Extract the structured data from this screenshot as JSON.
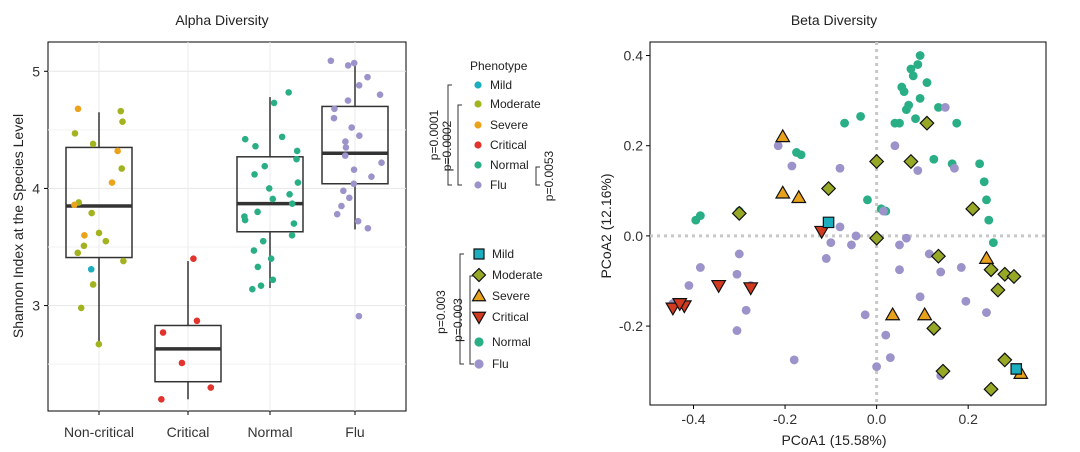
{
  "chart_data": [
    {
      "type": "box",
      "title": "Alpha Diversity",
      "xlabel": "",
      "ylabel": "Shannon Index at the Species Level",
      "categories": [
        "Non-critical",
        "Critical",
        "Normal",
        "Flu"
      ],
      "ylim": [
        2.1,
        5.25
      ],
      "yticks": [
        3,
        4,
        5
      ],
      "grid": true,
      "boxes": [
        {
          "category": "Non-critical",
          "q1": 3.41,
          "median": 3.85,
          "q3": 4.35,
          "whisker_low": 2.67,
          "whisker_high": 4.65
        },
        {
          "category": "Critical",
          "q1": 2.35,
          "median": 2.63,
          "q3": 2.83,
          "whisker_low": 2.2,
          "whisker_high": 3.38
        },
        {
          "category": "Normal",
          "q1": 3.63,
          "median": 3.87,
          "q3": 4.27,
          "whisker_low": 3.15,
          "whisker_high": 4.78
        },
        {
          "category": "Flu",
          "q1": 4.04,
          "median": 4.3,
          "q3": 4.7,
          "whisker_low": 3.65,
          "whisker_high": 5.07
        }
      ],
      "points": [
        {
          "category": "Non-critical",
          "group": "Moderate",
          "values": [
            4.66,
            4.57,
            4.47,
            4.38,
            4.17,
            3.88,
            3.79,
            3.62,
            3.55,
            3.51,
            3.45,
            3.38,
            3.18,
            2.98,
            2.67
          ]
        },
        {
          "category": "Non-critical",
          "group": "Severe",
          "values": [
            4.68,
            4.32,
            4.05,
            3.86,
            3.6
          ]
        },
        {
          "category": "Non-critical",
          "group": "Mild",
          "values": [
            3.31
          ]
        },
        {
          "category": "Critical",
          "group": "Critical",
          "values": [
            3.4,
            2.87,
            2.77,
            2.51,
            2.3,
            2.2
          ]
        },
        {
          "category": "Normal",
          "group": "Normal",
          "values": [
            4.82,
            4.73,
            4.44,
            4.42,
            4.36,
            4.32,
            4.25,
            4.19,
            4.12,
            4.05,
            4.0,
            3.95,
            3.91,
            3.87,
            3.8,
            3.76,
            3.73,
            3.7,
            3.6,
            3.55,
            3.47,
            3.4,
            3.33,
            3.22,
            3.17,
            3.14
          ]
        },
        {
          "category": "Flu",
          "group": "Flu",
          "values": [
            5.09,
            5.07,
            5.05,
            4.95,
            4.88,
            4.8,
            4.75,
            4.68,
            4.6,
            4.52,
            4.45,
            4.4,
            4.35,
            4.28,
            4.22,
            4.16,
            4.1,
            4.04,
            3.98,
            3.92,
            3.85,
            3.78,
            3.72,
            3.66,
            2.91
          ]
        }
      ],
      "legend": {
        "title": "Phenotype",
        "placement": "right",
        "entries": [
          {
            "label": "Mild",
            "color": "#1aaebf"
          },
          {
            "label": "Moderate",
            "color": "#a3b31f"
          },
          {
            "label": "Severe",
            "color": "#eba31b"
          },
          {
            "label": "Critical",
            "color": "#e2332c"
          },
          {
            "label": "Normal",
            "color": "#2aae86"
          },
          {
            "label": "Flu",
            "color": "#9b93c9"
          }
        ]
      },
      "annotations": [
        "p=0.0001",
        "p=0.0002",
        "p=0.0053"
      ]
    },
    {
      "type": "scatter",
      "title": "Beta Diversity",
      "xlabel": "PCoA1 (15.58%)",
      "ylabel": "PCoA2 (12.16%)",
      "xlim": [
        -0.495,
        0.37
      ],
      "ylim": [
        -0.375,
        0.43
      ],
      "xticks": [
        -0.4,
        -0.2,
        0.0,
        0.2
      ],
      "yticks": [
        -0.2,
        0.0,
        0.2,
        0.4
      ],
      "reference_lines": {
        "x": 0,
        "y": 0
      },
      "series": [
        {
          "name": "Mild",
          "marker": "square",
          "color": "#1aaebf",
          "points": [
            [
              -0.105,
              0.03
            ],
            [
              0.305,
              -0.295
            ]
          ]
        },
        {
          "name": "Moderate",
          "marker": "diamond",
          "color": "#97a827",
          "points": [
            [
              -0.3,
              0.05
            ],
            [
              -0.105,
              0.105
            ],
            [
              0.0,
              0.165
            ],
            [
              0.075,
              0.165
            ],
            [
              0.11,
              0.25
            ],
            [
              0.0,
              -0.005
            ],
            [
              0.135,
              -0.045
            ],
            [
              0.21,
              0.06
            ],
            [
              0.25,
              -0.075
            ],
            [
              0.265,
              -0.12
            ],
            [
              0.28,
              -0.085
            ],
            [
              0.3,
              -0.09
            ],
            [
              0.125,
              -0.205
            ],
            [
              0.145,
              -0.3
            ],
            [
              0.28,
              -0.275
            ],
            [
              0.25,
              -0.34
            ]
          ]
        },
        {
          "name": "Severe",
          "marker": "triangle-up",
          "color": "#e8a11a",
          "points": [
            [
              -0.205,
              0.22
            ],
            [
              -0.205,
              0.095
            ],
            [
              -0.17,
              0.085
            ],
            [
              0.035,
              -0.175
            ],
            [
              0.105,
              -0.175
            ],
            [
              0.24,
              -0.05
            ],
            [
              0.315,
              -0.305
            ]
          ]
        },
        {
          "name": "Critical",
          "marker": "triangle-down",
          "color": "#d23a1f",
          "points": [
            [
              -0.275,
              -0.115
            ],
            [
              -0.345,
              -0.11
            ],
            [
              -0.42,
              -0.155
            ],
            [
              -0.445,
              -0.16
            ],
            [
              -0.43,
              -0.15
            ],
            [
              -0.12,
              0.01
            ]
          ]
        },
        {
          "name": "Normal",
          "marker": "circle",
          "color": "#2aae86",
          "points": [
            [
              -0.385,
              0.045
            ],
            [
              -0.395,
              0.035
            ],
            [
              -0.3,
              0.055
            ],
            [
              -0.175,
              0.185
            ],
            [
              -0.165,
              0.18
            ],
            [
              -0.07,
              0.25
            ],
            [
              -0.035,
              0.265
            ],
            [
              0.01,
              0.06
            ],
            [
              0.02,
              0.055
            ],
            [
              0.04,
              0.25
            ],
            [
              0.05,
              0.25
            ],
            [
              0.055,
              0.33
            ],
            [
              0.06,
              0.32
            ],
            [
              0.065,
              0.28
            ],
            [
              0.07,
              0.29
            ],
            [
              0.075,
              0.37
            ],
            [
              0.08,
              0.355
            ],
            [
              0.085,
              0.26
            ],
            [
              0.09,
              0.38
            ],
            [
              0.095,
              0.4
            ],
            [
              0.095,
              0.305
            ],
            [
              0.11,
              0.34
            ],
            [
              0.125,
              0.17
            ],
            [
              0.135,
              0.285
            ],
            [
              0.165,
              0.16
            ],
            [
              0.175,
              0.25
            ],
            [
              0.225,
              0.16
            ],
            [
              0.235,
              0.12
            ],
            [
              0.24,
              0.08
            ],
            [
              0.245,
              0.035
            ],
            [
              0.255,
              -0.015
            ],
            [
              -0.02,
              0.08
            ]
          ]
        },
        {
          "name": "Flu",
          "marker": "circle",
          "color": "#9b93c9",
          "points": [
            [
              -0.445,
              -0.15
            ],
            [
              -0.41,
              -0.11
            ],
            [
              -0.385,
              -0.07
            ],
            [
              -0.305,
              -0.085
            ],
            [
              -0.305,
              -0.21
            ],
            [
              -0.3,
              -0.04
            ],
            [
              -0.285,
              -0.165
            ],
            [
              -0.275,
              -0.11
            ],
            [
              -0.215,
              0.2
            ],
            [
              -0.185,
              0.155
            ],
            [
              -0.18,
              -0.275
            ],
            [
              -0.11,
              -0.05
            ],
            [
              -0.1,
              -0.015
            ],
            [
              -0.08,
              0.15
            ],
            [
              -0.08,
              0.02
            ],
            [
              -0.055,
              -0.02
            ],
            [
              -0.045,
              0.0
            ],
            [
              -0.025,
              -0.175
            ],
            [
              0.015,
              0.055
            ],
            [
              0.0,
              -0.29
            ],
            [
              0.02,
              -0.22
            ],
            [
              0.03,
              -0.27
            ],
            [
              0.04,
              0.2
            ],
            [
              0.05,
              -0.075
            ],
            [
              0.065,
              -0.005
            ],
            [
              0.09,
              0.145
            ],
            [
              0.095,
              -0.135
            ],
            [
              0.115,
              -0.04
            ],
            [
              0.14,
              -0.31
            ],
            [
              0.15,
              0.285
            ],
            [
              0.17,
              0.15
            ],
            [
              0.185,
              -0.07
            ],
            [
              0.195,
              -0.145
            ],
            [
              0.24,
              -0.17
            ],
            [
              0.14,
              -0.08
            ],
            [
              0.05,
              -0.02
            ]
          ]
        }
      ],
      "legend": {
        "placement": "left",
        "entries": [
          {
            "label": "Mild",
            "marker": "square",
            "color": "#1aaebf"
          },
          {
            "label": "Moderate",
            "marker": "diamond",
            "color": "#97a827"
          },
          {
            "label": "Severe",
            "marker": "triangle-up",
            "color": "#e8a11a"
          },
          {
            "label": "Critical",
            "marker": "triangle-down",
            "color": "#d23a1f"
          },
          {
            "label": "Normal",
            "marker": "circle",
            "color": "#2aae86"
          },
          {
            "label": "Flu",
            "marker": "circle",
            "color": "#9b93c9"
          }
        ]
      },
      "annotations": [
        "p=0.003",
        "p=0.003"
      ]
    }
  ]
}
